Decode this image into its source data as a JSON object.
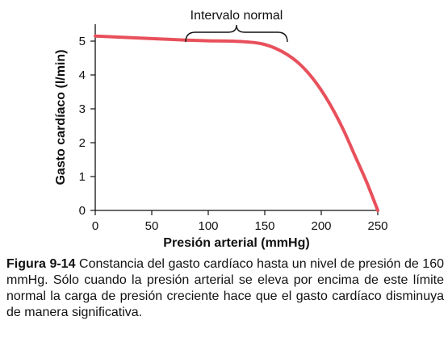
{
  "chart_data": {
    "type": "line",
    "xlabel": "Presión arterial (mmHg)",
    "ylabel": "Gasto cardíaco (l/min)",
    "xlim": [
      0,
      250
    ],
    "ylim": [
      0,
      5.5
    ],
    "x_ticks": [
      0,
      50,
      100,
      150,
      200,
      250
    ],
    "y_ticks": [
      0,
      1,
      2,
      3,
      4,
      5
    ],
    "grid": false,
    "series": [
      {
        "color": "#e8505b",
        "x": [
          0,
          20,
          40,
          60,
          80,
          100,
          120,
          140,
          150,
          160,
          170,
          180,
          190,
          200,
          210,
          220,
          230,
          240,
          250
        ],
        "y": [
          5.15,
          5.12,
          5.09,
          5.06,
          5.03,
          5.01,
          5.0,
          4.96,
          4.9,
          4.78,
          4.6,
          4.35,
          4.0,
          3.55,
          3.0,
          2.35,
          1.6,
          0.85,
          0
        ]
      }
    ],
    "annotations": [
      {
        "text": "Intervalo normal",
        "type": "brace",
        "x_range": [
          80,
          170
        ]
      }
    ]
  },
  "caption": {
    "label": "Figura 9-14",
    "text": "Constancia del gasto cardíaco hasta un nivel de presión de 160 mmHg. Sólo cuando la presión arterial se eleva por encima de este límite normal la carga de presión creciente hace que el gasto cardíaco disminuya de manera significativa."
  }
}
